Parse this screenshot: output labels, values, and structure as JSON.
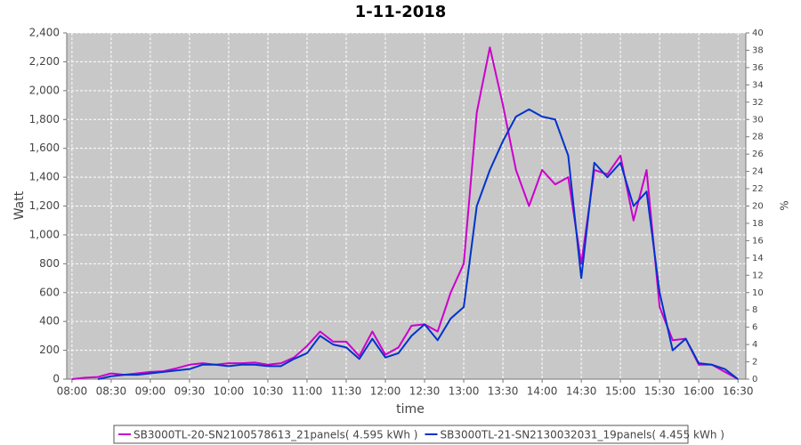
{
  "chart_data": {
    "type": "line",
    "title": "1-11-2018",
    "x_label": "time",
    "y_label": "Watt",
    "y2_label": "%",
    "x": [
      "08:00",
      "08:10",
      "08:20",
      "08:30",
      "08:40",
      "08:50",
      "09:00",
      "09:10",
      "09:20",
      "09:30",
      "09:40",
      "09:50",
      "10:00",
      "10:10",
      "10:20",
      "10:30",
      "10:40",
      "10:50",
      "11:00",
      "11:10",
      "11:20",
      "11:30",
      "11:40",
      "11:50",
      "12:00",
      "12:10",
      "12:20",
      "12:30",
      "12:40",
      "12:50",
      "13:00",
      "13:10",
      "13:20",
      "13:30",
      "13:40",
      "13:50",
      "14:00",
      "14:10",
      "14:20",
      "14:30",
      "14:40",
      "14:50",
      "15:00",
      "15:10",
      "15:20",
      "15:30",
      "15:40",
      "15:50",
      "16:00",
      "16:10",
      "16:20",
      "16:30"
    ],
    "series": [
      {
        "name": "SB3000TL-20-SN2100578613_21panels( 4.595 kWh )",
        "color": "#cc00cc",
        "values": [
          0,
          10,
          15,
          40,
          30,
          40,
          50,
          55,
          75,
          100,
          110,
          100,
          110,
          110,
          115,
          100,
          110,
          150,
          230,
          330,
          260,
          260,
          160,
          330,
          170,
          220,
          370,
          380,
          330,
          600,
          800,
          1850,
          2300,
          1900,
          1450,
          1200,
          1450,
          1350,
          1400,
          800,
          1450,
          1420,
          1550,
          1100,
          1450,
          500,
          270,
          280,
          100,
          100,
          50,
          0
        ]
      },
      {
        "name": "SB3000TL-21-SN2130032031_19panels( 4.455 kWh )",
        "color": "#0033cc",
        "values": [
          null,
          null,
          0,
          20,
          30,
          30,
          40,
          50,
          60,
          70,
          100,
          100,
          90,
          100,
          100,
          90,
          90,
          140,
          180,
          300,
          240,
          220,
          140,
          280,
          150,
          180,
          300,
          380,
          270,
          420,
          500,
          1200,
          1450,
          1650,
          1820,
          1870,
          1820,
          1800,
          1550,
          700,
          1500,
          1400,
          1500,
          1200,
          1300,
          600,
          200,
          280,
          110,
          100,
          70,
          0
        ]
      }
    ],
    "xlim": [
      "07:56",
      "16:36"
    ],
    "xticks": [
      "08:00",
      "08:30",
      "09:00",
      "09:30",
      "10:00",
      "10:30",
      "11:00",
      "11:30",
      "12:00",
      "12:30",
      "13:00",
      "13:30",
      "14:00",
      "14:30",
      "15:00",
      "15:30",
      "16:00",
      "16:30"
    ],
    "ylim": [
      0,
      2400
    ],
    "yticks": [
      0,
      200,
      400,
      600,
      800,
      {
        "value": 1000,
        "label": "1,000"
      },
      {
        "value": 1200,
        "label": "1,200"
      },
      {
        "value": 1400,
        "label": "1,400"
      },
      {
        "value": 1600,
        "label": "1,600"
      },
      {
        "value": 1800,
        "label": "1,800"
      },
      {
        "value": 2000,
        "label": "2,000"
      },
      {
        "value": 2200,
        "label": "2,200"
      },
      {
        "value": 2400,
        "label": "2,400"
      }
    ],
    "y2lim": [
      0,
      40
    ],
    "y2ticks": [
      0,
      2,
      4,
      6,
      8,
      10,
      12,
      14,
      16,
      18,
      20,
      22,
      24,
      26,
      28,
      30,
      32,
      34,
      36,
      38,
      40
    ],
    "grid": true,
    "legend": "bottom"
  }
}
